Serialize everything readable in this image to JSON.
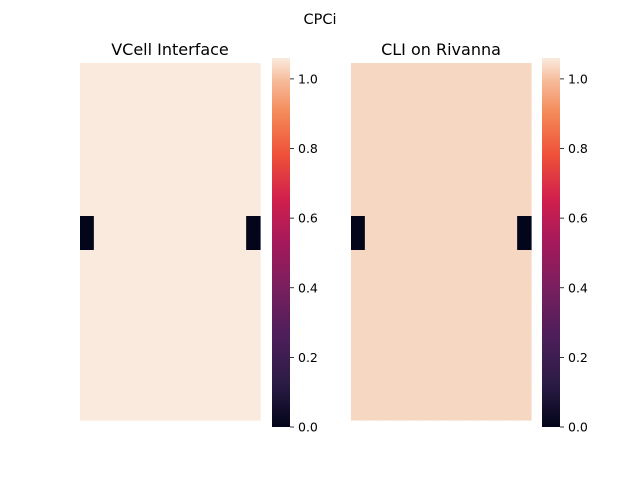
{
  "figure": {
    "title": "CPCi"
  },
  "chart_data": [
    {
      "type": "heatmap",
      "title": "VCell Interface",
      "rows": 21,
      "cols": 13,
      "base_value": 1.05,
      "dark_cells": [
        {
          "row": 9,
          "col": 0,
          "value": 0.0
        },
        {
          "row": 9,
          "col": 12,
          "value": 0.0
        },
        {
          "row": 10,
          "col": 0,
          "value": 0.0
        },
        {
          "row": 10,
          "col": 12,
          "value": 0.0
        }
      ],
      "cell_color": "#faeade",
      "dark_color": "#03051a",
      "colorbar": {
        "ticks": [
          "0.0",
          "0.2",
          "0.4",
          "0.6",
          "0.8",
          "1.0"
        ],
        "min": 0.0,
        "max": 1.06
      },
      "xlabel": "",
      "ylabel": ""
    },
    {
      "type": "heatmap",
      "title": "CLI on Rivanna",
      "rows": 21,
      "cols": 13,
      "base_value": 0.98,
      "dark_cells": [
        {
          "row": 9,
          "col": 0,
          "value": 0.0
        },
        {
          "row": 9,
          "col": 12,
          "value": 0.0
        },
        {
          "row": 10,
          "col": 0,
          "value": 0.0
        },
        {
          "row": 10,
          "col": 12,
          "value": 0.0
        }
      ],
      "cell_color": "#f6d8c2",
      "dark_color": "#03051a",
      "colorbar": {
        "ticks": [
          "0.0",
          "0.2",
          "0.4",
          "0.6",
          "0.8",
          "1.0"
        ],
        "min": 0.0,
        "max": 1.06
      },
      "xlabel": "",
      "ylabel": ""
    }
  ]
}
